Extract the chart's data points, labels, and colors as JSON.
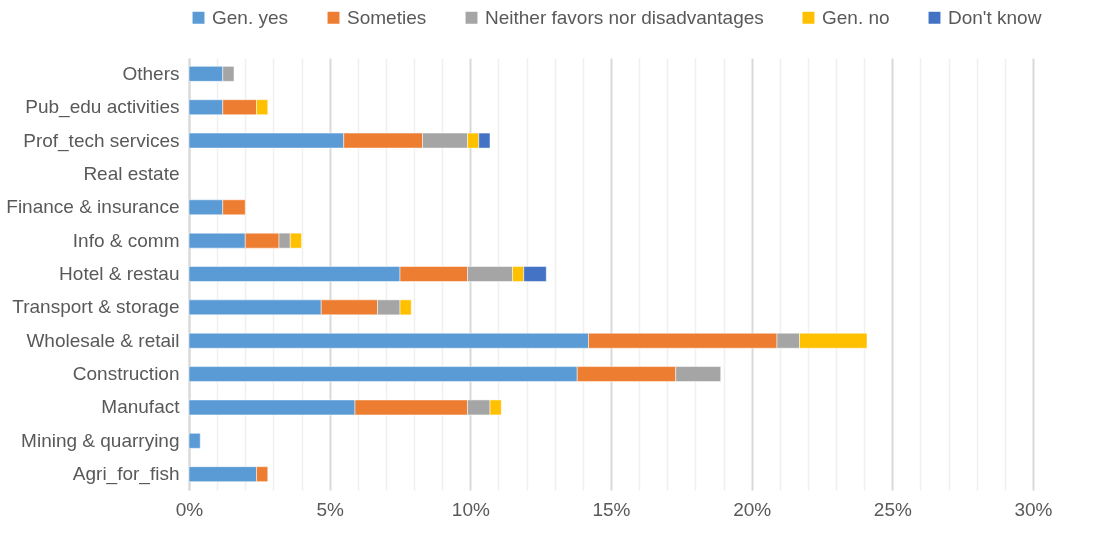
{
  "chart_data": {
    "type": "bar",
    "orientation": "horizontal",
    "stacked": true,
    "categories": [
      "Others",
      "Pub_edu activities",
      "Prof_tech services",
      "Real estate",
      "Finance & insurance",
      "Info & comm",
      "Hotel & restau",
      "Transport & storage",
      "Wholesale & retail",
      "Construction",
      "Manufact",
      "Mining & quarrying",
      "Agri_for_fish"
    ],
    "series": [
      {
        "name": "Gen. yes",
        "color": "#5b9bd5",
        "values": [
          1.2,
          1.2,
          5.5,
          null,
          1.2,
          2.0,
          7.5,
          4.7,
          14.2,
          13.8,
          5.9,
          0.4,
          2.4
        ]
      },
      {
        "name": "Someties",
        "color": "#ed7d31",
        "values": [
          null,
          1.2,
          2.8,
          null,
          0.8,
          1.2,
          2.4,
          2.0,
          6.7,
          3.5,
          4.0,
          null,
          0.4
        ]
      },
      {
        "name": "Neither favors nor disadvantages",
        "color": "#a5a5a5",
        "values": [
          0.4,
          null,
          1.6,
          null,
          null,
          0.4,
          1.6,
          0.8,
          0.8,
          1.6,
          0.8,
          null,
          null
        ]
      },
      {
        "name": "Gen. no",
        "color": "#ffc000",
        "values": [
          null,
          0.4,
          0.4,
          null,
          null,
          0.4,
          0.4,
          0.4,
          2.4,
          null,
          0.4,
          null,
          null
        ]
      },
      {
        "name": "Don't know",
        "color": "#4472c4",
        "values": [
          null,
          null,
          0.4,
          null,
          null,
          null,
          0.8,
          null,
          null,
          null,
          null,
          null,
          null
        ]
      }
    ],
    "xlim": [
      0,
      30
    ],
    "xticks": [
      {
        "value": 0,
        "label": "0%"
      },
      {
        "value": 1,
        "label": null
      },
      {
        "value": 2,
        "label": null
      },
      {
        "value": 3,
        "label": null
      },
      {
        "value": 4,
        "label": null
      },
      {
        "value": 5,
        "label": "5%"
      },
      {
        "value": 6,
        "label": null
      },
      {
        "value": 7,
        "label": null
      },
      {
        "value": 8,
        "label": null
      },
      {
        "value": 9,
        "label": null
      },
      {
        "value": 10,
        "label": "10%"
      },
      {
        "value": 11,
        "label": null
      },
      {
        "value": 12,
        "label": null
      },
      {
        "value": 13,
        "label": null
      },
      {
        "value": 14,
        "label": null
      },
      {
        "value": 15,
        "label": "15%"
      },
      {
        "value": 16,
        "label": null
      },
      {
        "value": 17,
        "label": null
      },
      {
        "value": 18,
        "label": null
      },
      {
        "value": 19,
        "label": null
      },
      {
        "value": 20,
        "label": "20%"
      },
      {
        "value": 21,
        "label": null
      },
      {
        "value": 22,
        "label": null
      },
      {
        "value": 23,
        "label": null
      },
      {
        "value": 24,
        "label": null
      },
      {
        "value": 25,
        "label": "25%"
      },
      {
        "value": 26,
        "label": null
      },
      {
        "value": 27,
        "label": null
      },
      {
        "value": 28,
        "label": null
      },
      {
        "value": 29,
        "label": null
      },
      {
        "value": 30,
        "label": "30%"
      }
    ],
    "grid": true,
    "legend": "top"
  }
}
